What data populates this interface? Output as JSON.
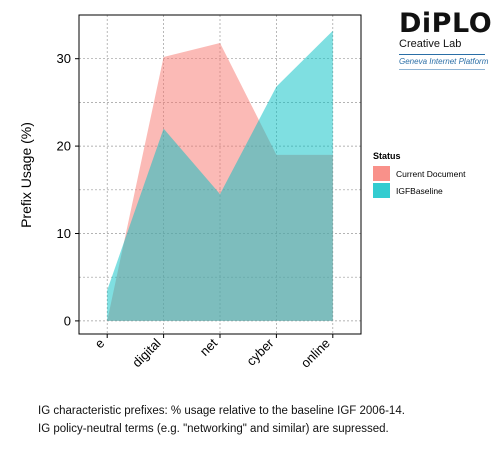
{
  "logo": {
    "brand": "DiPLO",
    "line1": "Creative Lab",
    "line2": "Geneva Internet Platform"
  },
  "caption": {
    "line1": "IG characteristic prefixes: % usage relative to the baseline IGF 2006-14.",
    "line2": "IG policy-neutral terms (e.g. \"networking\" and similar) are supressed."
  },
  "colors": {
    "current": "#f8766d",
    "baseline": "#00bfc4",
    "overlap": "#b8aaa6"
  },
  "chart_data": {
    "type": "area",
    "categories": [
      "e",
      "digital",
      "net",
      "cyber",
      "online"
    ],
    "series": [
      {
        "name": "Current Document",
        "values": [
          0.0,
          30.2,
          31.8,
          19.0,
          19.0
        ]
      },
      {
        "name": "IGFBaseline",
        "values": [
          3.5,
          22.0,
          14.5,
          26.8,
          33.2
        ]
      }
    ],
    "xlabel": "",
    "ylabel": "Prefix Usage (%)",
    "ylim": [
      -1.5,
      35
    ],
    "yticks": [
      0,
      10,
      20,
      30
    ],
    "legend_title": "Status",
    "legend_position": "right",
    "grid": true
  }
}
